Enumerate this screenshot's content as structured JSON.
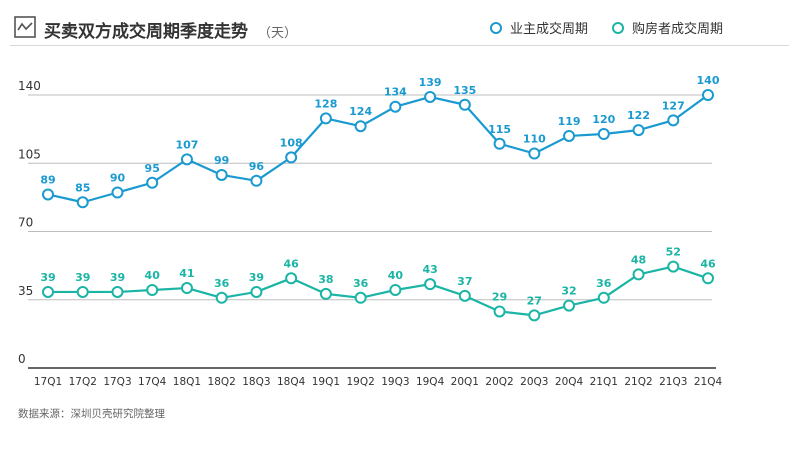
{
  "header": {
    "title": "买卖双方成交周期季度走势",
    "unit": "（天）",
    "icon": "trend-chart-icon"
  },
  "source": "数据来源：深圳贝壳研究院整理",
  "colors": {
    "owner": "#1a9ad1",
    "buyer": "#1bb5a5",
    "grid": "#bdbdbd",
    "axis": "#333333"
  },
  "chart_data": {
    "type": "line",
    "title": "买卖双方成交周期季度走势",
    "ylabel": "（天）",
    "xlabel": "",
    "ylim": [
      0,
      140
    ],
    "yticks": [
      0,
      35,
      70,
      105,
      140
    ],
    "grid": true,
    "legend_position": "top-right",
    "categories": [
      "17Q1",
      "17Q2",
      "17Q3",
      "17Q4",
      "18Q1",
      "18Q2",
      "18Q3",
      "18Q4",
      "19Q1",
      "19Q2",
      "19Q3",
      "19Q4",
      "20Q1",
      "20Q2",
      "20Q3",
      "20Q4",
      "21Q1",
      "21Q2",
      "21Q3",
      "21Q4"
    ],
    "series": [
      {
        "name": "业主成交周期",
        "key": "owner",
        "values": [
          89,
          85,
          90,
          95,
          107,
          99,
          96,
          108,
          128,
          124,
          134,
          139,
          135,
          115,
          110,
          119,
          120,
          122,
          127,
          140
        ]
      },
      {
        "name": "购房者成交周期",
        "key": "buyer",
        "values": [
          39,
          39,
          39,
          40,
          41,
          36,
          39,
          46,
          38,
          36,
          40,
          43,
          37,
          29,
          27,
          32,
          36,
          48,
          52,
          46
        ]
      }
    ]
  }
}
